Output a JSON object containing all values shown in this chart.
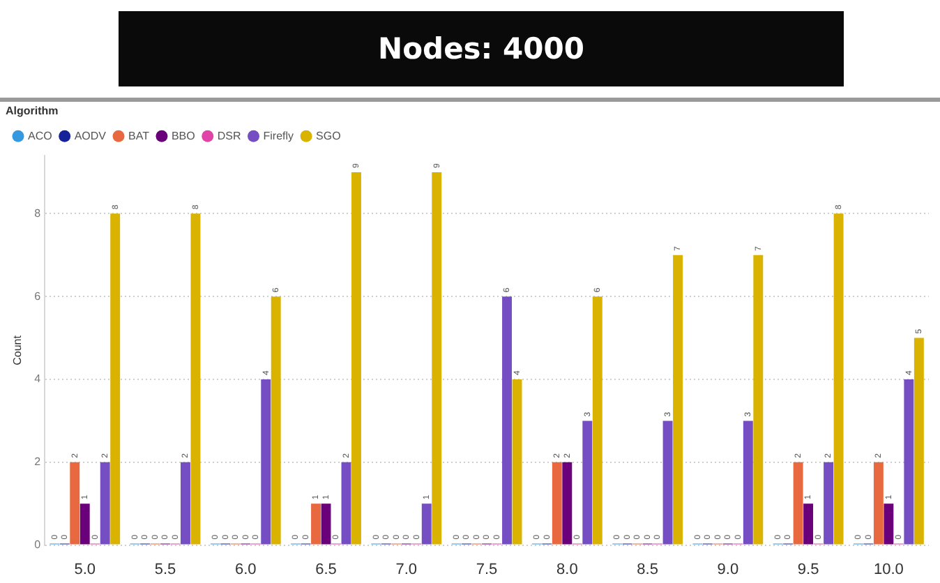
{
  "chart_data": {
    "type": "bar",
    "title": "Nodes: 4000",
    "ylabel": "Count",
    "legend_title": "Algorithm",
    "legend": "top left",
    "grid": "y",
    "data_labels": true,
    "categories": [
      "5.0",
      "5.5",
      "6.0",
      "6.5",
      "7.0",
      "7.5",
      "8.0",
      "8.5",
      "9.0",
      "9.5",
      "10.0"
    ],
    "ylim": [
      0,
      9.4
    ],
    "yticks": [
      0,
      2,
      4,
      6,
      8
    ],
    "series": [
      {
        "name": "ACO",
        "color": "#3599e0",
        "values": [
          0,
          0,
          0,
          0,
          0,
          0,
          0,
          0,
          0,
          0,
          0
        ]
      },
      {
        "name": "AODV",
        "color": "#16229a",
        "values": [
          0,
          0,
          0,
          0,
          0,
          0,
          0,
          0,
          0,
          0,
          0
        ]
      },
      {
        "name": "BAT",
        "color": "#e8693f",
        "values": [
          2,
          0,
          0,
          1,
          0,
          0,
          2,
          0,
          0,
          2,
          2
        ]
      },
      {
        "name": "BBO",
        "color": "#6b007b",
        "values": [
          1,
          0,
          0,
          1,
          0,
          0,
          2,
          0,
          0,
          1,
          1
        ]
      },
      {
        "name": "DSR",
        "color": "#e044a7",
        "values": [
          0,
          0,
          0,
          0,
          0,
          0,
          0,
          0,
          0,
          0,
          0
        ]
      },
      {
        "name": "Firefly",
        "color": "#744ec2",
        "values": [
          2,
          2,
          4,
          2,
          1,
          6,
          3,
          3,
          3,
          2,
          4
        ]
      },
      {
        "name": "SGO",
        "color": "#d9b300",
        "values": [
          8,
          8,
          6,
          9,
          9,
          4,
          6,
          7,
          7,
          8,
          5
        ]
      }
    ]
  }
}
